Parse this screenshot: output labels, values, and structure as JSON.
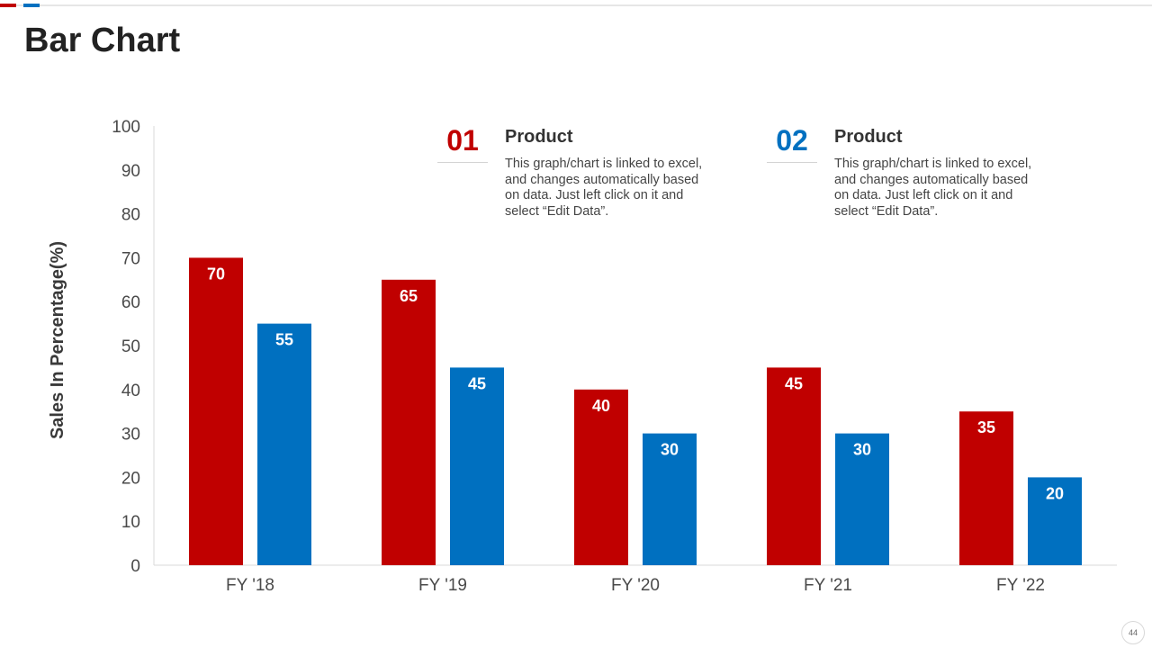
{
  "page": {
    "title": "Bar Chart",
    "page_number": "44"
  },
  "colors": {
    "red": "#c00000",
    "blue": "#0070c0",
    "axis_line": "#d9d9d9",
    "accent_red": "#c00000",
    "accent_blue": "#0070c0"
  },
  "legend": [
    {
      "number": "01",
      "heading": "Product",
      "description": "This graph/chart is linked to excel, and changes automatically based on data. Just left click on it and select “Edit Data”.",
      "color": "#c00000"
    },
    {
      "number": "02",
      "heading": "Product",
      "description": "This graph/chart is linked to excel, and changes automatically based on data. Just left click on it and select “Edit Data”.",
      "color": "#0070c0"
    }
  ],
  "chart_data": {
    "type": "bar",
    "title": "",
    "xlabel": "",
    "ylabel": "Sales In Percentage(%)",
    "categories": [
      "FY '18",
      "FY '19",
      "FY '20",
      "FY '21",
      "FY '22"
    ],
    "series": [
      {
        "name": "Product 01",
        "color": "#c00000",
        "values": [
          70,
          65,
          40,
          45,
          35
        ]
      },
      {
        "name": "Product 02",
        "color": "#0070c0",
        "values": [
          55,
          45,
          30,
          30,
          20
        ]
      }
    ],
    "ylim": [
      0,
      100
    ],
    "yticks": [
      0,
      10,
      20,
      30,
      40,
      50,
      60,
      70,
      80,
      90,
      100
    ],
    "grid": false,
    "data_labels": true,
    "legend_position": "top-right"
  }
}
